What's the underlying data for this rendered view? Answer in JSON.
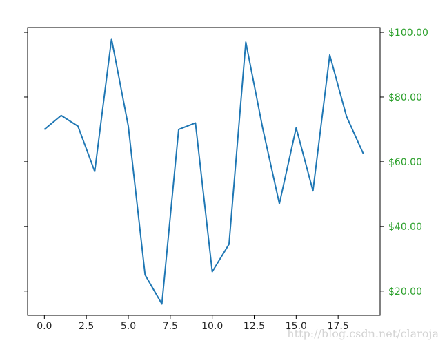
{
  "chart_data": {
    "type": "line",
    "x": [
      0,
      1,
      2,
      3,
      4,
      5,
      6,
      7,
      8,
      9,
      10,
      11,
      12,
      13,
      14,
      15,
      16,
      17,
      18,
      19
    ],
    "series": [
      {
        "values": [
          70.0,
          74.3,
          71.0,
          57.0,
          98.0,
          71.0,
          25.0,
          16.0,
          70.0,
          72.0,
          26.0,
          34.5,
          97.0,
          70.5,
          47.0,
          70.5,
          51.0,
          93.0,
          74.0,
          62.5
        ],
        "color": "#1f77b4"
      }
    ],
    "xlim": [
      -1,
      20
    ],
    "ylim": [
      12.5,
      101.5
    ],
    "xticks": [
      0,
      2.5,
      5,
      7.5,
      10,
      12.5,
      15,
      17.5
    ],
    "xtick_labels": [
      "0.0",
      "2.5",
      "5.0",
      "7.5",
      "10.0",
      "12.5",
      "15.0",
      "17.5"
    ],
    "left_yticks": [
      20,
      40,
      60,
      80,
      100
    ],
    "right_yticks": [
      20,
      40,
      60,
      80,
      100
    ],
    "right_ytick_labels": [
      "$20.00",
      "$40.00",
      "$60.00",
      "$80.00",
      "$100.00"
    ],
    "right_axis_color": "#2ca02c",
    "grid": false
  },
  "watermark": "http://blog.csdn.net/claroja"
}
